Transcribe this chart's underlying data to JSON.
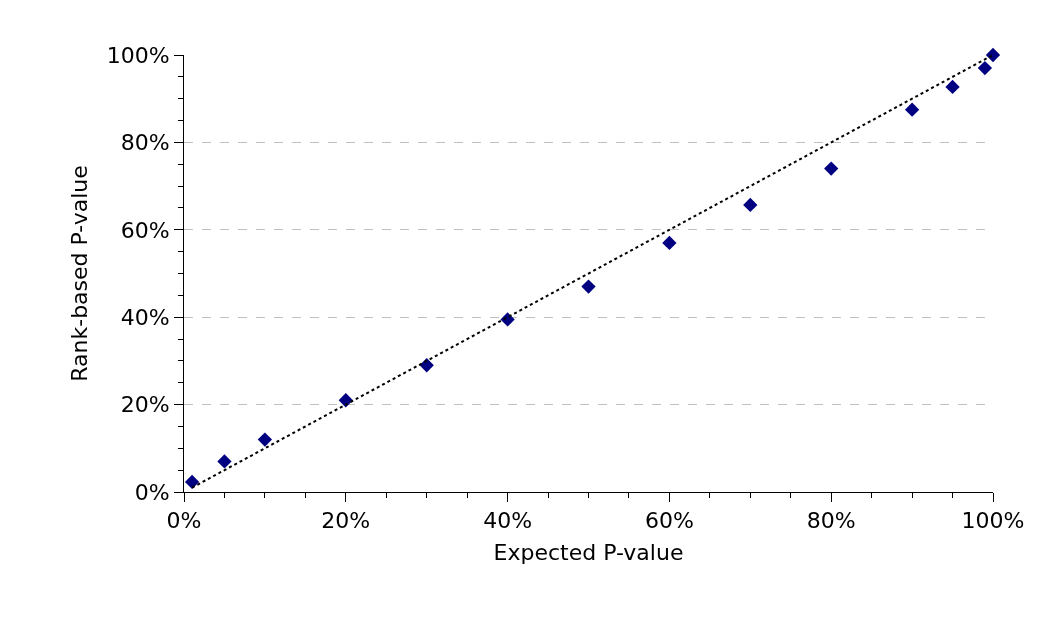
{
  "chart_data": {
    "type": "scatter",
    "xlabel": "Expected P-value",
    "ylabel": "Rank-based P-value",
    "x": [
      1,
      5,
      10,
      20,
      30,
      40,
      50,
      60,
      70,
      80,
      90,
      95,
      99,
      100
    ],
    "series": [
      {
        "color": "#000080",
        "marker": "diamond",
        "values": [
          2.3,
          7,
          12,
          21,
          29,
          39.5,
          47,
          57,
          65.7,
          74,
          87.5,
          92.7,
          97,
          100
        ]
      },
      {
        "type": "line",
        "color": "#000000",
        "line_style": "dotted",
        "marker": "none",
        "x": [
          1,
          100
        ],
        "values": [
          1,
          100
        ]
      }
    ],
    "xlim": [
      0,
      100
    ],
    "ylim": [
      0,
      100
    ],
    "xticks": [
      {
        "value": 0,
        "label": "0%"
      },
      {
        "value": 5,
        "label": null
      },
      {
        "value": 10,
        "label": null
      },
      {
        "value": 15,
        "label": null
      },
      {
        "value": 20,
        "label": "20%"
      },
      {
        "value": 25,
        "label": null
      },
      {
        "value": 30,
        "label": null
      },
      {
        "value": 35,
        "label": null
      },
      {
        "value": 40,
        "label": "40%"
      },
      {
        "value": 45,
        "label": null
      },
      {
        "value": 50,
        "label": null
      },
      {
        "value": 55,
        "label": null
      },
      {
        "value": 60,
        "label": "60%"
      },
      {
        "value": 65,
        "label": null
      },
      {
        "value": 70,
        "label": null
      },
      {
        "value": 75,
        "label": null
      },
      {
        "value": 80,
        "label": "80%"
      },
      {
        "value": 85,
        "label": null
      },
      {
        "value": 90,
        "label": null
      },
      {
        "value": 95,
        "label": null
      },
      {
        "value": 100,
        "label": "100%"
      }
    ],
    "yticks": [
      {
        "value": 0,
        "label": "0%"
      },
      {
        "value": 5,
        "label": null
      },
      {
        "value": 10,
        "label": null
      },
      {
        "value": 15,
        "label": null
      },
      {
        "value": 20,
        "label": "20%"
      },
      {
        "value": 25,
        "label": null
      },
      {
        "value": 30,
        "label": null
      },
      {
        "value": 35,
        "label": null
      },
      {
        "value": 40,
        "label": "40%"
      },
      {
        "value": 45,
        "label": null
      },
      {
        "value": 50,
        "label": null
      },
      {
        "value": 55,
        "label": null
      },
      {
        "value": 60,
        "label": "60%"
      },
      {
        "value": 65,
        "label": null
      },
      {
        "value": 70,
        "label": null
      },
      {
        "value": 75,
        "label": null
      },
      {
        "value": 80,
        "label": "80%"
      },
      {
        "value": 85,
        "label": null
      },
      {
        "value": 90,
        "label": null
      },
      {
        "value": 95,
        "label": null
      },
      {
        "value": 100,
        "label": "100%"
      }
    ],
    "grid": "y"
  }
}
